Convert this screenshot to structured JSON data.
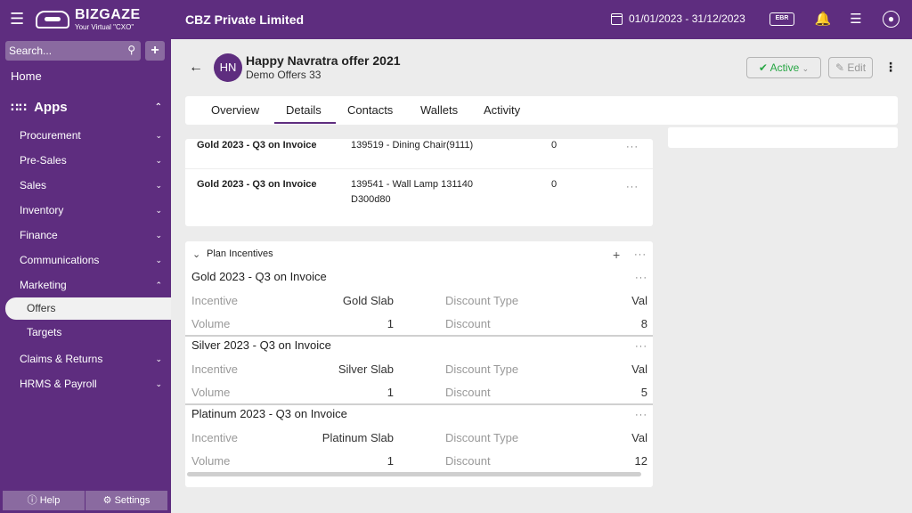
{
  "topbar": {
    "logo_name": "BIZGAZE",
    "logo_tag": "Your Virtual \"CXO\"",
    "company": "CBZ Private Limited",
    "date_range": "01/01/2023 - 31/12/2023",
    "ebr_label": "EBR"
  },
  "sidebar": {
    "search_placeholder": "Search...",
    "home": "Home",
    "apps": "Apps",
    "items": [
      {
        "label": "Procurement"
      },
      {
        "label": "Pre-Sales"
      },
      {
        "label": "Sales"
      },
      {
        "label": "Inventory"
      },
      {
        "label": "Finance"
      },
      {
        "label": "Communications"
      },
      {
        "label": "Marketing"
      }
    ],
    "marketing_children": [
      "Offers",
      "Targets"
    ],
    "more_items": [
      {
        "label": "Claims & Returns"
      },
      {
        "label": "HRMS & Payroll"
      }
    ],
    "help": "Help",
    "settings": "Settings"
  },
  "header": {
    "avatar_initials": "HN",
    "title": "Happy Navratra offer 2021",
    "subtitle": "Demo Offers 33",
    "status": "Active",
    "edit": "Edit"
  },
  "tabs": [
    "Overview",
    "Details",
    "Contacts",
    "Wallets",
    "Activity"
  ],
  "offer_rows": [
    {
      "plan": "Gold 2023 - Q3 on Invoice",
      "item": "139519 - Dining Chair(9111)",
      "item2": "",
      "qty": "0"
    },
    {
      "plan": "Gold 2023 - Q3 on Invoice",
      "item": "139541 - Wall Lamp 131140",
      "item2": "D300d80",
      "qty": "0"
    }
  ],
  "plan_incentives": {
    "heading": "Plan Incentives",
    "labels": {
      "incentive": "Incentive",
      "volume": "Volume",
      "discount_type": "Discount Type",
      "discount": "Discount"
    },
    "items": [
      {
        "title": "Gold 2023 - Q3 on Invoice",
        "incentive": "Gold Slab",
        "volume": "1",
        "discount_type": "Val",
        "discount": "8"
      },
      {
        "title": "Silver 2023 - Q3 on Invoice",
        "incentive": "Silver Slab",
        "volume": "1",
        "discount_type": "Val",
        "discount": "5"
      },
      {
        "title": "Platinum 2023 - Q3 on Invoice",
        "incentive": "Platinum Slab",
        "volume": "1",
        "discount_type": "Val",
        "discount": "12"
      }
    ]
  }
}
